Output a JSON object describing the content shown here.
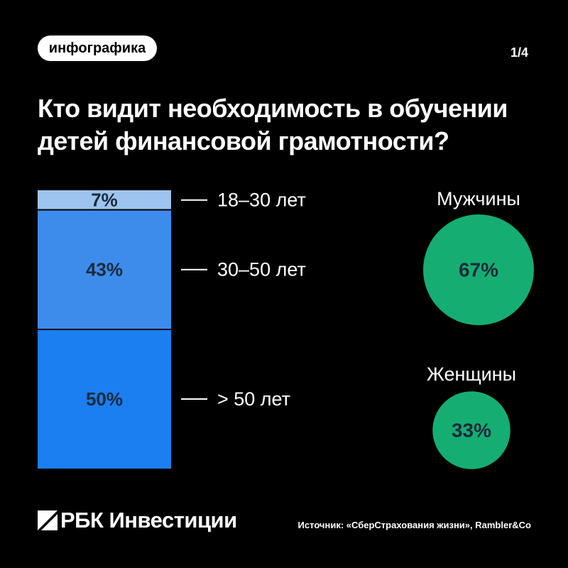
{
  "badge": "инфографика",
  "page_number": "1/4",
  "title_lines": [
    "Кто видит необходимость в обучении",
    "детей финансовой грамотности?"
  ],
  "logo_text": "РБК Инвестиции",
  "source": "Источник: «СберСтрахования жизни», Rambler&Co",
  "colors": {
    "background": "#000000",
    "age_18_30": "#9cc4ee",
    "age_30_50": "#3d8cec",
    "age_50_plus": "#1b7ff2",
    "circles": "#16ad73"
  },
  "chart_data": [
    {
      "type": "bar",
      "subtype": "stacked-100",
      "categories": [
        "18–30 лет",
        "30–50 лет",
        "> 50 лет"
      ],
      "values": [
        7,
        43,
        50
      ],
      "value_labels": [
        "7%",
        "43%",
        "50%"
      ],
      "ylim": [
        0,
        100
      ]
    },
    {
      "type": "bubble",
      "categories": [
        "Мужчины",
        "Женщины"
      ],
      "values": [
        67,
        33
      ],
      "value_labels": [
        "67%",
        "33%"
      ]
    }
  ]
}
